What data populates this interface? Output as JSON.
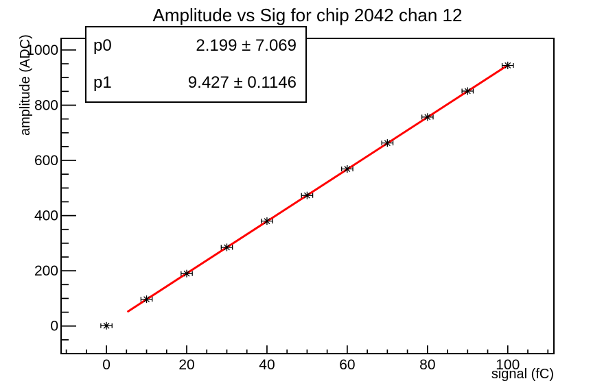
{
  "title": "Amplitude vs Sig for chip 2042 chan 12",
  "stats_box": {
    "rows": [
      {
        "name": "p0",
        "value": "2.199 ± 7.069"
      },
      {
        "name": "p1",
        "value": "9.427 ± 0.1146"
      }
    ]
  },
  "chart_data": {
    "type": "scatter",
    "title": "Amplitude vs Sig for chip 2042 chan 12",
    "xlabel": "signal (fC)",
    "ylabel": "amplitude (ADC)",
    "x": [
      0,
      10,
      20,
      30,
      40,
      50,
      60,
      70,
      80,
      90,
      100
    ],
    "y": [
      1,
      97,
      190,
      285,
      380,
      473,
      569,
      663,
      757,
      851,
      944
    ],
    "x_error_half_width": 1.4,
    "marker_style": "asterisk",
    "fit": {
      "model": "p0 + p1*x",
      "p0": 2.199,
      "p0_error": 7.069,
      "p1": 9.427,
      "p1_error": 0.1146,
      "x_start": 5.4,
      "x_end": 100,
      "color": "#ff0000"
    },
    "xlim": [
      -11.3,
      111.5
    ],
    "ylim": [
      -100,
      1042
    ],
    "x_major_ticks": [
      0,
      20,
      40,
      60,
      80,
      100
    ],
    "x_minor_step": 5,
    "y_major_ticks": [
      0,
      200,
      400,
      600,
      800,
      1000
    ],
    "y_minor_step": 50,
    "grid": false,
    "legend": "none",
    "colors": {
      "marker": "#000000",
      "fit_line": "#ff0000",
      "axes": "#000000",
      "background": "#ffffff"
    }
  }
}
